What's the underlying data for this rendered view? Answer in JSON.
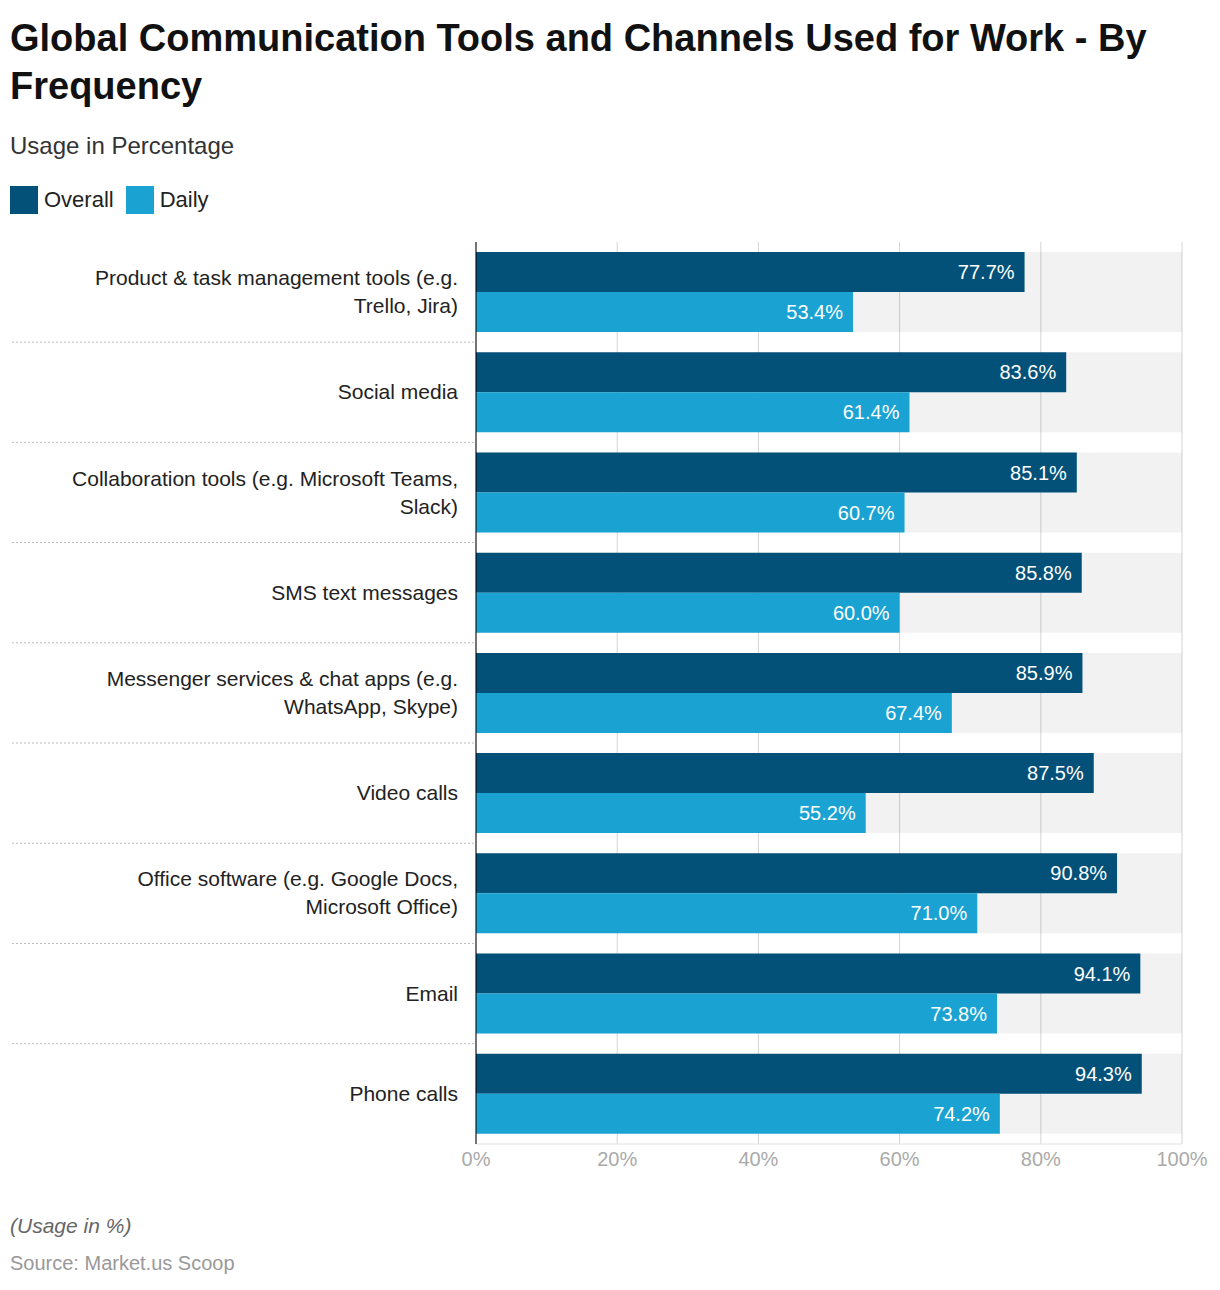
{
  "chart_data": {
    "type": "bar",
    "orientation": "horizontal",
    "title": "Global Communication Tools and Channels Used for Work - By Frequency",
    "subtitle": "Usage in Percentage",
    "annotations": [
      "(Usage in %)",
      "Source: Market.us Scoop"
    ],
    "categories": [
      "Product & task management tools (e.g. Trello, Jira)",
      "Social media",
      "Collaboration tools (e.g. Microsoft Teams, Slack)",
      "SMS text messages",
      "Messenger services & chat apps (e.g. WhatsApp, Skype)",
      "Video calls",
      "Office software (e.g. Google Docs, Microsoft Office)",
      "Email",
      "Phone calls"
    ],
    "series": [
      {
        "name": "Overall",
        "color": "#035179",
        "values": [
          77.7,
          83.6,
          85.1,
          85.8,
          85.9,
          87.5,
          90.8,
          94.1,
          94.3
        ],
        "value_labels": [
          "77.7%",
          "83.6%",
          "85.1%",
          "85.8%",
          "85.9%",
          "87.5%",
          "90.8%",
          "94.1%",
          "94.3%"
        ]
      },
      {
        "name": "Daily",
        "color": "#1aa3d2",
        "values": [
          53.4,
          61.4,
          60.7,
          60.0,
          67.4,
          55.2,
          71.0,
          73.8,
          74.2
        ],
        "value_labels": [
          "53.4%",
          "61.4%",
          "60.7%",
          "60.0%",
          "67.4%",
          "55.2%",
          "71.0%",
          "73.8%",
          "74.2%"
        ]
      }
    ],
    "xlim": [
      0,
      100
    ],
    "xticks": [
      {
        "value": 0,
        "label": "0%"
      },
      {
        "value": 20,
        "label": "20%"
      },
      {
        "value": 40,
        "label": "40%"
      },
      {
        "value": 60,
        "label": "60%"
      },
      {
        "value": 80,
        "label": "80%"
      },
      {
        "value": 100,
        "label": "100%"
      }
    ],
    "grid": true,
    "legend": "top-left",
    "data_labels": true
  }
}
